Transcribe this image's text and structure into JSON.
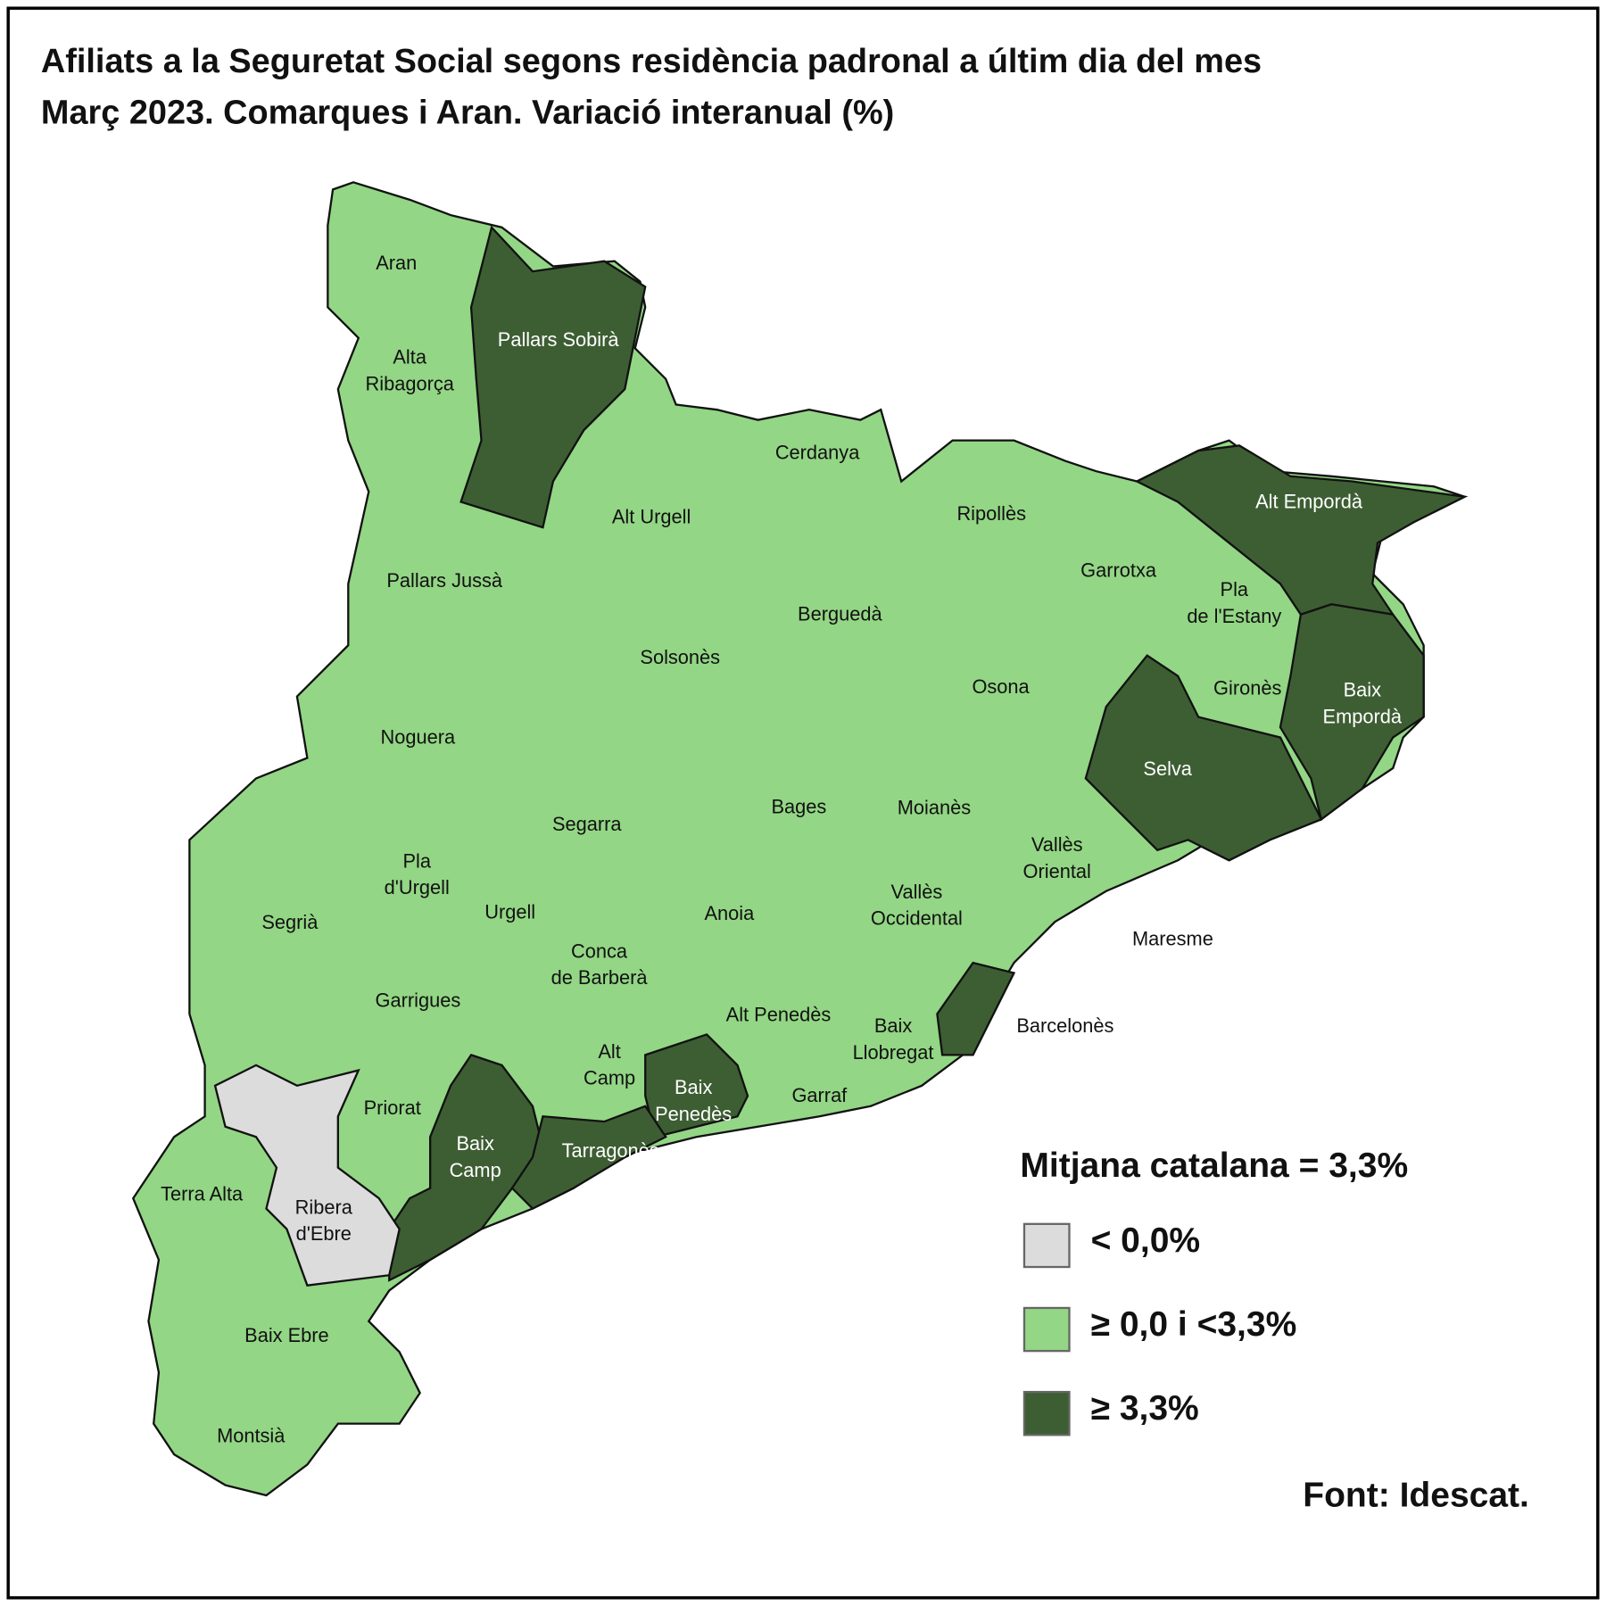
{
  "title": [
    "Afiliats a la Seguretat Social segons residència padronal a últim dia del mes",
    "Març 2023. Comarques i Aran. Variació interanual (%)"
  ],
  "legend": {
    "title": "Mitjana catalana = 3,3%",
    "classes": [
      {
        "label": "< 0,0%",
        "color": "#dcdcdc"
      },
      {
        "label": "≥ 0,0 i <3,3%",
        "color": "#93d685"
      },
      {
        "label": "≥ 3,3%",
        "color": "#3d5e33"
      }
    ]
  },
  "regions": [
    {
      "label": [
        "Aran"
      ],
      "class": 1
    },
    {
      "label": [
        "Pallars Sobirà"
      ],
      "class": 2
    },
    {
      "label": [
        "Alta",
        "Ribagorça"
      ],
      "class": 1
    },
    {
      "label": [
        "Cerdanya"
      ],
      "class": 1
    },
    {
      "label": [
        "Alt Urgell"
      ],
      "class": 1
    },
    {
      "label": [
        "Ripollès"
      ],
      "class": 1
    },
    {
      "label": [
        "Alt Empordà"
      ],
      "class": 2
    },
    {
      "label": [
        "Pallars Jussà"
      ],
      "class": 1
    },
    {
      "label": [
        "Garrotxa"
      ],
      "class": 1
    },
    {
      "label": [
        "Pla",
        "de l'Estany"
      ],
      "class": 1
    },
    {
      "label": [
        "Berguedà"
      ],
      "class": 1
    },
    {
      "label": [
        "Solsonès"
      ],
      "class": 1
    },
    {
      "label": [
        "Osona"
      ],
      "class": 1
    },
    {
      "label": [
        "Gironès"
      ],
      "class": 1
    },
    {
      "label": [
        "Baix",
        "Empordà"
      ],
      "class": 2
    },
    {
      "label": [
        "Noguera"
      ],
      "class": 1
    },
    {
      "label": [
        "Selva"
      ],
      "class": 2
    },
    {
      "label": [
        "Bages"
      ],
      "class": 1
    },
    {
      "label": [
        "Moianès"
      ],
      "class": 1
    },
    {
      "label": [
        "Segarra"
      ],
      "class": 1
    },
    {
      "label": [
        "Vallès",
        "Oriental"
      ],
      "class": 1
    },
    {
      "label": [
        "Pla",
        "d'Urgell"
      ],
      "class": 1
    },
    {
      "label": [
        "Vallès",
        "Occidental"
      ],
      "class": 1
    },
    {
      "label": [
        "Segrià"
      ],
      "class": 1
    },
    {
      "label": [
        "Urgell"
      ],
      "class": 1
    },
    {
      "label": [
        "Anoia"
      ],
      "class": 1
    },
    {
      "label": [
        "Maresme"
      ],
      "class": 1
    },
    {
      "label": [
        "Conca",
        "de Barberà"
      ],
      "class": 1
    },
    {
      "label": [
        "Garrigues"
      ],
      "class": 1
    },
    {
      "label": [
        "Alt Penedès"
      ],
      "class": 1
    },
    {
      "label": [
        "Baix",
        "Llobregat"
      ],
      "class": 1
    },
    {
      "label": [
        "Barcelonès"
      ],
      "class": 2
    },
    {
      "label": [
        "Alt",
        "Camp"
      ],
      "class": 1
    },
    {
      "label": [
        "Baix",
        "Penedès"
      ],
      "class": 2
    },
    {
      "label": [
        "Garraf"
      ],
      "class": 1
    },
    {
      "label": [
        "Priorat"
      ],
      "class": 1
    },
    {
      "label": [
        "Baix",
        "Camp"
      ],
      "class": 2
    },
    {
      "label": [
        "Tarragonès"
      ],
      "class": 2
    },
    {
      "label": [
        "Terra Alta"
      ],
      "class": 1
    },
    {
      "label": [
        "Ribera",
        "d'Ebre"
      ],
      "class": 0
    },
    {
      "label": [
        "Baix Ebre"
      ],
      "class": 1
    },
    {
      "label": [
        "Montsià"
      ],
      "class": 1
    }
  ],
  "source": "Font: Idescat."
}
